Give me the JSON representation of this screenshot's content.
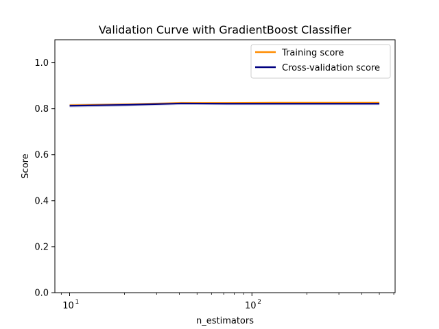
{
  "chart_data": {
    "type": "line",
    "title": "Validation Curve with GradientBoost Classifier",
    "xlabel": "n_estimators",
    "ylabel": "Score",
    "xscale": "log",
    "xlim": [
      8.3,
      610
    ],
    "ylim": [
      0.0,
      1.1
    ],
    "x_major_ticks": [
      {
        "value": 10,
        "base": "10",
        "exp": "1"
      },
      {
        "value": 100,
        "base": "10",
        "exp": "2"
      }
    ],
    "y_ticks": [
      {
        "value": 0.0,
        "label": "0.0"
      },
      {
        "value": 0.2,
        "label": "0.2"
      },
      {
        "value": 0.4,
        "label": "0.4"
      },
      {
        "value": 0.6,
        "label": "0.6"
      },
      {
        "value": 0.8,
        "label": "0.8"
      },
      {
        "value": 1.0,
        "label": "1.0"
      }
    ],
    "x": [
      10,
      21,
      41,
      73,
      131,
      272,
      500
    ],
    "series": [
      {
        "name": "Training score",
        "color": "#ff8c00",
        "values": [
          0.815,
          0.819,
          0.825,
          0.825,
          0.826,
          0.826,
          0.826
        ],
        "band": [
          0.005,
          0.005,
          0.004,
          0.004,
          0.004,
          0.004,
          0.004
        ]
      },
      {
        "name": "Cross-validation score",
        "color": "#000080",
        "values": [
          0.813,
          0.817,
          0.823,
          0.822,
          0.822,
          0.822,
          0.822
        ],
        "band": [
          0.007,
          0.007,
          0.006,
          0.006,
          0.006,
          0.006,
          0.006
        ]
      }
    ],
    "legend_position": "top-right",
    "grid": false
  }
}
